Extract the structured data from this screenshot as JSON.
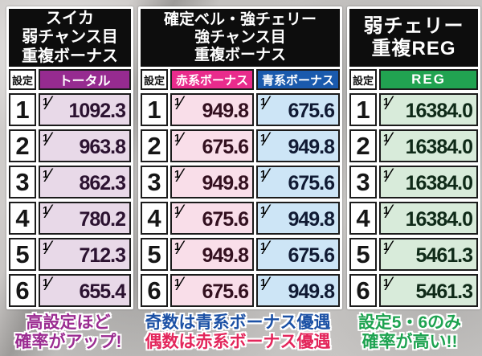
{
  "icons": {
    "fraction_slash": "⁄"
  },
  "tables": [
    {
      "id": "suika-weak-chance",
      "title_lines": [
        "スイカ",
        "弱チャンス目",
        "重複ボーナス"
      ],
      "setting_label": "設定",
      "numerator": "1",
      "columns": [
        {
          "key": "total",
          "label": "トータル",
          "header_bg": "#962b90",
          "cell_bg": "#e8d9e8",
          "value_color": "#2b1230"
        }
      ],
      "rows": [
        {
          "setting": "1",
          "values": [
            "1092.3"
          ]
        },
        {
          "setting": "2",
          "values": [
            "963.8"
          ]
        },
        {
          "setting": "3",
          "values": [
            "862.3"
          ]
        },
        {
          "setting": "4",
          "values": [
            "780.2"
          ]
        },
        {
          "setting": "5",
          "values": [
            "712.3"
          ]
        },
        {
          "setting": "6",
          "values": [
            "655.4"
          ]
        }
      ],
      "caption": {
        "lines": [
          {
            "text": "高設定ほど",
            "color": "#9b2c91"
          },
          {
            "text": "確率がアップ!",
            "color": "#9b2c91"
          }
        ]
      }
    },
    {
      "id": "kakutei-bell-strong-cherry",
      "title_lines": [
        "確定ベル・強チェリー",
        "強チャンス目",
        "重複ボーナス"
      ],
      "setting_label": "設定",
      "numerator": "1",
      "columns": [
        {
          "key": "red-bonus",
          "label": "赤系ボーナス",
          "header_bg": "#e92b8c",
          "cell_bg": "#f9dee9",
          "value_color": "#33101f"
        },
        {
          "key": "blue-bonus",
          "label": "青系ボーナス",
          "header_bg": "#1a5aad",
          "cell_bg": "#cde5f6",
          "value_color": "#101a33"
        }
      ],
      "rows": [
        {
          "setting": "1",
          "values": [
            "949.8",
            "675.6"
          ]
        },
        {
          "setting": "2",
          "values": [
            "675.6",
            "949.8"
          ]
        },
        {
          "setting": "3",
          "values": [
            "949.8",
            "675.6"
          ]
        },
        {
          "setting": "4",
          "values": [
            "675.6",
            "949.8"
          ]
        },
        {
          "setting": "5",
          "values": [
            "949.8",
            "675.6"
          ]
        },
        {
          "setting": "6",
          "values": [
            "675.6",
            "949.8"
          ]
        }
      ],
      "caption": {
        "lines": [
          {
            "text": "奇数は青系ボーナス優遇",
            "color": "#1c51a5"
          },
          {
            "text": "偶数は赤系ボーナス優遇",
            "color": "#e3265b"
          }
        ]
      }
    },
    {
      "id": "weak-cherry-reg",
      "title_lines": [
        "弱チェリー",
        "重複REG"
      ],
      "setting_label": "設定",
      "numerator": "1",
      "columns": [
        {
          "key": "reg",
          "label": "REG",
          "header_bg": "#21a351",
          "cell_bg": "#d8ebda",
          "value_color": "#0f2a18"
        }
      ],
      "rows": [
        {
          "setting": "1",
          "values": [
            "16384.0"
          ]
        },
        {
          "setting": "2",
          "values": [
            "16384.0"
          ]
        },
        {
          "setting": "3",
          "values": [
            "16384.0"
          ]
        },
        {
          "setting": "4",
          "values": [
            "16384.0"
          ]
        },
        {
          "setting": "5",
          "values": [
            "5461.3"
          ]
        },
        {
          "setting": "6",
          "values": [
            "5461.3"
          ]
        }
      ],
      "caption": {
        "lines": [
          {
            "text": "設定5・6のみ",
            "color": "#1ea351"
          },
          {
            "text": "確率が高い!!",
            "color": "#1ea351"
          }
        ]
      }
    }
  ],
  "chart_data": [
    {
      "type": "table",
      "title": "スイカ 弱チャンス目 重複ボーナス",
      "columns": [
        "設定",
        "トータル"
      ],
      "rows": [
        [
          "1",
          "1/1092.3"
        ],
        [
          "2",
          "1/963.8"
        ],
        [
          "3",
          "1/862.3"
        ],
        [
          "4",
          "1/780.2"
        ],
        [
          "5",
          "1/712.3"
        ],
        [
          "6",
          "1/655.4"
        ]
      ],
      "note": "高設定ほど確率がアップ!"
    },
    {
      "type": "table",
      "title": "確定ベル・強チェリー 強チャンス目 重複ボーナス",
      "columns": [
        "設定",
        "赤系ボーナス",
        "青系ボーナス"
      ],
      "rows": [
        [
          "1",
          "1/949.8",
          "1/675.6"
        ],
        [
          "2",
          "1/675.6",
          "1/949.8"
        ],
        [
          "3",
          "1/949.8",
          "1/675.6"
        ],
        [
          "4",
          "1/675.6",
          "1/949.8"
        ],
        [
          "5",
          "1/949.8",
          "1/675.6"
        ],
        [
          "6",
          "1/675.6",
          "1/949.8"
        ]
      ],
      "note": "奇数は青系ボーナス優遇 偶数は赤系ボーナス優遇"
    },
    {
      "type": "table",
      "title": "弱チェリー 重複REG",
      "columns": [
        "設定",
        "REG"
      ],
      "rows": [
        [
          "1",
          "1/16384.0"
        ],
        [
          "2",
          "1/16384.0"
        ],
        [
          "3",
          "1/16384.0"
        ],
        [
          "4",
          "1/16384.0"
        ],
        [
          "5",
          "1/5461.3"
        ],
        [
          "6",
          "1/5461.3"
        ]
      ],
      "note": "設定5・6のみ確率が高い!!"
    }
  ]
}
